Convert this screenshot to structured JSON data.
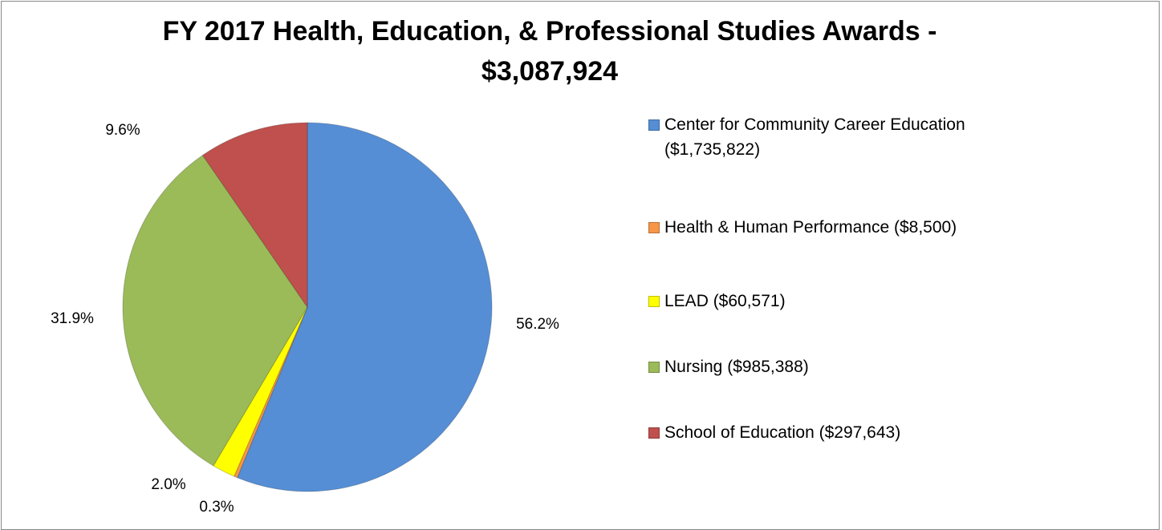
{
  "chart_data": {
    "type": "pie",
    "title": "FY 2017 Health, Education, & Professional Studies Awards - $3,087,924",
    "categories": [
      "Center for Community Career Education ($1,735,822)",
      "Health & Human Performance ($8,500)",
      "LEAD ($60,571)",
      "Nursing ($985,388)",
      "School of Education ($297,643)"
    ],
    "values": [
      56.2,
      0.3,
      2.0,
      31.9,
      9.6
    ],
    "value_labels": [
      "56.2%",
      "0.3%",
      "2.0%",
      "31.9%",
      "9.6%"
    ],
    "colors": [
      "#558ed5",
      "#f79646",
      "#ffff00",
      "#9bbb59",
      "#c0504d"
    ],
    "legend": "right"
  }
}
